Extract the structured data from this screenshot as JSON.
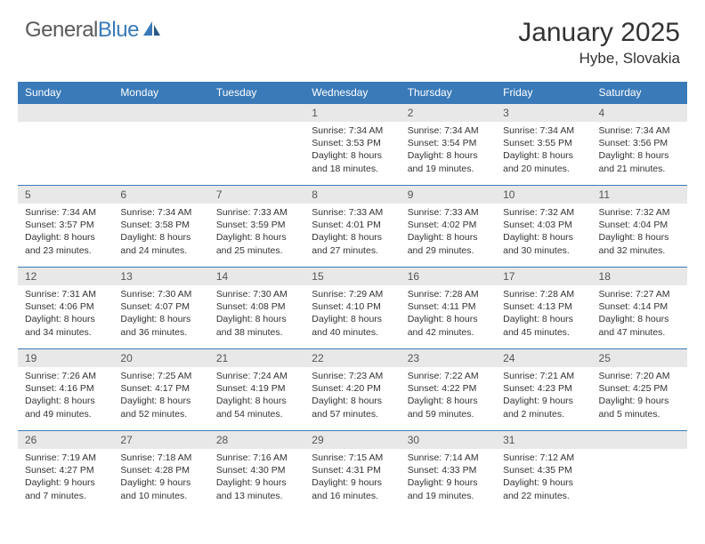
{
  "logo": {
    "word1": "General",
    "word2": "Blue"
  },
  "title": "January 2025",
  "location": "Hybe, Slovakia",
  "colors": {
    "header_bg": "#3a7ab8",
    "header_text": "#ffffff",
    "daynum_bg": "#e8e8e8",
    "daynum_text": "#555555",
    "body_text": "#333333",
    "rule": "#3a7ab8",
    "logo_gray": "#5a5a5a",
    "logo_blue": "#3a7ab8",
    "page_bg": "#ffffff"
  },
  "typography": {
    "title_fontsize": 30,
    "location_fontsize": 17,
    "logo_fontsize": 24,
    "dayheader_fontsize": 12,
    "daynum_fontsize": 12,
    "daydata_fontsize": 10.5
  },
  "day_headers": [
    "Sunday",
    "Monday",
    "Tuesday",
    "Wednesday",
    "Thursday",
    "Friday",
    "Saturday"
  ],
  "weeks": [
    [
      {
        "n": "",
        "lines": []
      },
      {
        "n": "",
        "lines": []
      },
      {
        "n": "",
        "lines": []
      },
      {
        "n": "1",
        "lines": [
          "Sunrise: 7:34 AM",
          "Sunset: 3:53 PM",
          "Daylight: 8 hours",
          "and 18 minutes."
        ]
      },
      {
        "n": "2",
        "lines": [
          "Sunrise: 7:34 AM",
          "Sunset: 3:54 PM",
          "Daylight: 8 hours",
          "and 19 minutes."
        ]
      },
      {
        "n": "3",
        "lines": [
          "Sunrise: 7:34 AM",
          "Sunset: 3:55 PM",
          "Daylight: 8 hours",
          "and 20 minutes."
        ]
      },
      {
        "n": "4",
        "lines": [
          "Sunrise: 7:34 AM",
          "Sunset: 3:56 PM",
          "Daylight: 8 hours",
          "and 21 minutes."
        ]
      }
    ],
    [
      {
        "n": "5",
        "lines": [
          "Sunrise: 7:34 AM",
          "Sunset: 3:57 PM",
          "Daylight: 8 hours",
          "and 23 minutes."
        ]
      },
      {
        "n": "6",
        "lines": [
          "Sunrise: 7:34 AM",
          "Sunset: 3:58 PM",
          "Daylight: 8 hours",
          "and 24 minutes."
        ]
      },
      {
        "n": "7",
        "lines": [
          "Sunrise: 7:33 AM",
          "Sunset: 3:59 PM",
          "Daylight: 8 hours",
          "and 25 minutes."
        ]
      },
      {
        "n": "8",
        "lines": [
          "Sunrise: 7:33 AM",
          "Sunset: 4:01 PM",
          "Daylight: 8 hours",
          "and 27 minutes."
        ]
      },
      {
        "n": "9",
        "lines": [
          "Sunrise: 7:33 AM",
          "Sunset: 4:02 PM",
          "Daylight: 8 hours",
          "and 29 minutes."
        ]
      },
      {
        "n": "10",
        "lines": [
          "Sunrise: 7:32 AM",
          "Sunset: 4:03 PM",
          "Daylight: 8 hours",
          "and 30 minutes."
        ]
      },
      {
        "n": "11",
        "lines": [
          "Sunrise: 7:32 AM",
          "Sunset: 4:04 PM",
          "Daylight: 8 hours",
          "and 32 minutes."
        ]
      }
    ],
    [
      {
        "n": "12",
        "lines": [
          "Sunrise: 7:31 AM",
          "Sunset: 4:06 PM",
          "Daylight: 8 hours",
          "and 34 minutes."
        ]
      },
      {
        "n": "13",
        "lines": [
          "Sunrise: 7:30 AM",
          "Sunset: 4:07 PM",
          "Daylight: 8 hours",
          "and 36 minutes."
        ]
      },
      {
        "n": "14",
        "lines": [
          "Sunrise: 7:30 AM",
          "Sunset: 4:08 PM",
          "Daylight: 8 hours",
          "and 38 minutes."
        ]
      },
      {
        "n": "15",
        "lines": [
          "Sunrise: 7:29 AM",
          "Sunset: 4:10 PM",
          "Daylight: 8 hours",
          "and 40 minutes."
        ]
      },
      {
        "n": "16",
        "lines": [
          "Sunrise: 7:28 AM",
          "Sunset: 4:11 PM",
          "Daylight: 8 hours",
          "and 42 minutes."
        ]
      },
      {
        "n": "17",
        "lines": [
          "Sunrise: 7:28 AM",
          "Sunset: 4:13 PM",
          "Daylight: 8 hours",
          "and 45 minutes."
        ]
      },
      {
        "n": "18",
        "lines": [
          "Sunrise: 7:27 AM",
          "Sunset: 4:14 PM",
          "Daylight: 8 hours",
          "and 47 minutes."
        ]
      }
    ],
    [
      {
        "n": "19",
        "lines": [
          "Sunrise: 7:26 AM",
          "Sunset: 4:16 PM",
          "Daylight: 8 hours",
          "and 49 minutes."
        ]
      },
      {
        "n": "20",
        "lines": [
          "Sunrise: 7:25 AM",
          "Sunset: 4:17 PM",
          "Daylight: 8 hours",
          "and 52 minutes."
        ]
      },
      {
        "n": "21",
        "lines": [
          "Sunrise: 7:24 AM",
          "Sunset: 4:19 PM",
          "Daylight: 8 hours",
          "and 54 minutes."
        ]
      },
      {
        "n": "22",
        "lines": [
          "Sunrise: 7:23 AM",
          "Sunset: 4:20 PM",
          "Daylight: 8 hours",
          "and 57 minutes."
        ]
      },
      {
        "n": "23",
        "lines": [
          "Sunrise: 7:22 AM",
          "Sunset: 4:22 PM",
          "Daylight: 8 hours",
          "and 59 minutes."
        ]
      },
      {
        "n": "24",
        "lines": [
          "Sunrise: 7:21 AM",
          "Sunset: 4:23 PM",
          "Daylight: 9 hours",
          "and 2 minutes."
        ]
      },
      {
        "n": "25",
        "lines": [
          "Sunrise: 7:20 AM",
          "Sunset: 4:25 PM",
          "Daylight: 9 hours",
          "and 5 minutes."
        ]
      }
    ],
    [
      {
        "n": "26",
        "lines": [
          "Sunrise: 7:19 AM",
          "Sunset: 4:27 PM",
          "Daylight: 9 hours",
          "and 7 minutes."
        ]
      },
      {
        "n": "27",
        "lines": [
          "Sunrise: 7:18 AM",
          "Sunset: 4:28 PM",
          "Daylight: 9 hours",
          "and 10 minutes."
        ]
      },
      {
        "n": "28",
        "lines": [
          "Sunrise: 7:16 AM",
          "Sunset: 4:30 PM",
          "Daylight: 9 hours",
          "and 13 minutes."
        ]
      },
      {
        "n": "29",
        "lines": [
          "Sunrise: 7:15 AM",
          "Sunset: 4:31 PM",
          "Daylight: 9 hours",
          "and 16 minutes."
        ]
      },
      {
        "n": "30",
        "lines": [
          "Sunrise: 7:14 AM",
          "Sunset: 4:33 PM",
          "Daylight: 9 hours",
          "and 19 minutes."
        ]
      },
      {
        "n": "31",
        "lines": [
          "Sunrise: 7:12 AM",
          "Sunset: 4:35 PM",
          "Daylight: 9 hours",
          "and 22 minutes."
        ]
      },
      {
        "n": "",
        "lines": []
      }
    ]
  ]
}
